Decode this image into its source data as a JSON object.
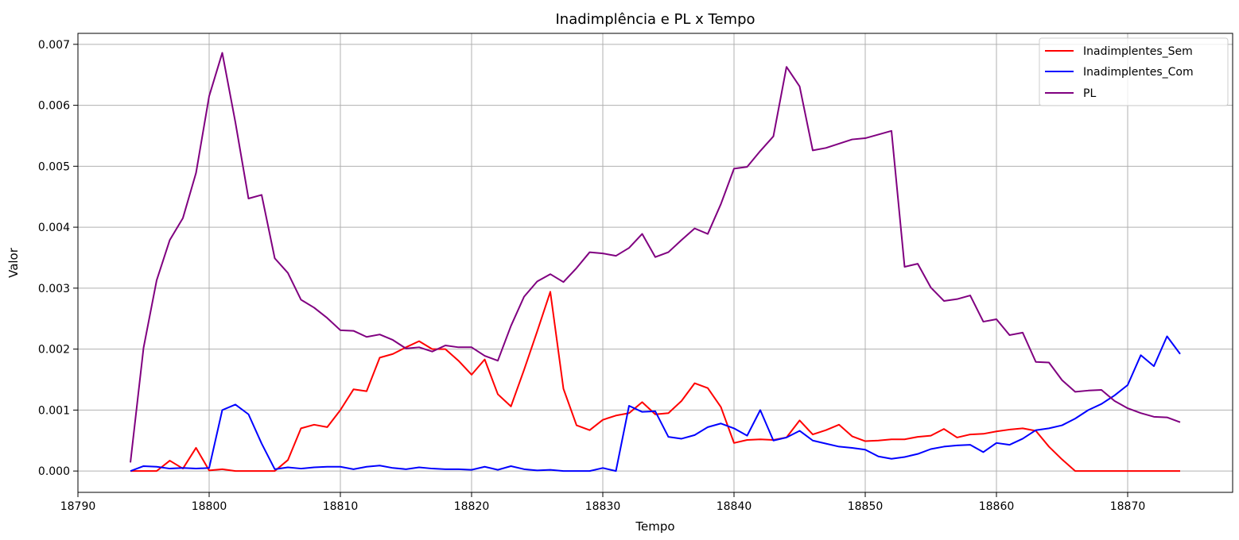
{
  "chart_data": {
    "type": "line",
    "title": "Inadimplência e PL x Tempo",
    "xlabel": "Tempo",
    "ylabel": "Valor",
    "xlim": [
      18790,
      18878
    ],
    "ylim": [
      -0.00035,
      0.00718
    ],
    "xticks": [
      18790,
      18800,
      18810,
      18820,
      18830,
      18840,
      18850,
      18860,
      18870
    ],
    "xtick_labels": [
      "18790",
      "18800",
      "18810",
      "18820",
      "18830",
      "18840",
      "18850",
      "18860",
      "18870"
    ],
    "yticks": [
      0,
      0.001,
      0.002,
      0.003,
      0.004,
      0.005,
      0.006,
      0.007
    ],
    "ytick_labels": [
      "0.000",
      "0.001",
      "0.002",
      "0.003",
      "0.004",
      "0.005",
      "0.006",
      "0.007"
    ],
    "grid": true,
    "legend": "top-right",
    "x_start": 18794,
    "series": [
      {
        "name": "Inadimplentes_Sem",
        "color": "#ff0000",
        "values": [
          0,
          0,
          0,
          0.00017,
          4e-05,
          0.00038,
          1e-05,
          3e-05,
          0,
          0,
          0,
          0,
          0.00018,
          0.0007,
          0.00076,
          0.00072,
          0.001,
          0.00134,
          0.00131,
          0.00186,
          0.00192,
          0.00203,
          0.00213,
          0.002,
          0.002,
          0.00181,
          0.00158,
          0.00183,
          0.00126,
          0.00106,
          0.00166,
          0.00229,
          0.00294,
          0.00135,
          0.00075,
          0.00067,
          0.00084,
          0.00091,
          0.00095,
          0.00113,
          0.00093,
          0.00095,
          0.00115,
          0.00144,
          0.00136,
          0.00105,
          0.00046,
          0.00051,
          0.00052,
          0.00051,
          0.00055,
          0.00083,
          0.0006,
          0.00067,
          0.00076,
          0.00057,
          0.00049,
          0.0005,
          0.00052,
          0.00052,
          0.00056,
          0.00058,
          0.00069,
          0.00055,
          0.0006,
          0.00061,
          0.00065,
          0.00068,
          0.0007,
          0.00066,
          0.0004,
          0.00019,
          0,
          0,
          0,
          0,
          0,
          0,
          0,
          0,
          0
        ]
      },
      {
        "name": "Inadimplentes_Com",
        "color": "#0000ff",
        "values": [
          0,
          8e-05,
          7e-05,
          4e-05,
          5e-05,
          4e-05,
          5e-05,
          0.001,
          0.00109,
          0.00093,
          0.00045,
          3e-05,
          6e-05,
          4e-05,
          6e-05,
          7e-05,
          7e-05,
          3e-05,
          7e-05,
          9e-05,
          5e-05,
          3e-05,
          6e-05,
          4e-05,
          3e-05,
          3e-05,
          2e-05,
          7e-05,
          2e-05,
          8e-05,
          3e-05,
          1e-05,
          2e-05,
          0,
          0,
          0,
          5e-05,
          0,
          0.00107,
          0.00097,
          0.00098,
          0.00056,
          0.00053,
          0.00059,
          0.00072,
          0.00078,
          0.0007,
          0.00058,
          0.001,
          0.0005,
          0.00055,
          0.00066,
          0.0005,
          0.00045,
          0.0004,
          0.00038,
          0.00035,
          0.00024,
          0.0002,
          0.00023,
          0.00028,
          0.00036,
          0.0004,
          0.00042,
          0.00043,
          0.00031,
          0.00046,
          0.00043,
          0.00053,
          0.00067,
          0.0007,
          0.00075,
          0.00086,
          0.001,
          0.0011,
          0.00124,
          0.00141,
          0.0019,
          0.00172,
          0.00221,
          0.00192
        ]
      },
      {
        "name": "PL",
        "color": "#800080",
        "values": [
          0.00014,
          0.00202,
          0.00313,
          0.00379,
          0.00415,
          0.00489,
          0.00615,
          0.00686,
          0.00572,
          0.00447,
          0.00453,
          0.00349,
          0.00325,
          0.00281,
          0.00268,
          0.00251,
          0.00231,
          0.0023,
          0.0022,
          0.00224,
          0.00215,
          0.00201,
          0.00203,
          0.00196,
          0.00206,
          0.00203,
          0.00203,
          0.00189,
          0.00181,
          0.00238,
          0.00286,
          0.00311,
          0.00323,
          0.0031,
          0.00333,
          0.00359,
          0.00357,
          0.00353,
          0.00366,
          0.00389,
          0.00351,
          0.00359,
          0.00379,
          0.00398,
          0.00389,
          0.00438,
          0.00496,
          0.00499,
          0.00525,
          0.00549,
          0.00663,
          0.00631,
          0.00526,
          0.0053,
          0.00537,
          0.00544,
          0.00546,
          0.00552,
          0.00558,
          0.00335,
          0.0034,
          0.00301,
          0.00279,
          0.00282,
          0.00288,
          0.00245,
          0.00249,
          0.00223,
          0.00227,
          0.00179,
          0.00178,
          0.00149,
          0.0013,
          0.00132,
          0.00133,
          0.00115,
          0.00103,
          0.00095,
          0.00089,
          0.00088,
          0.0008
        ]
      }
    ]
  }
}
